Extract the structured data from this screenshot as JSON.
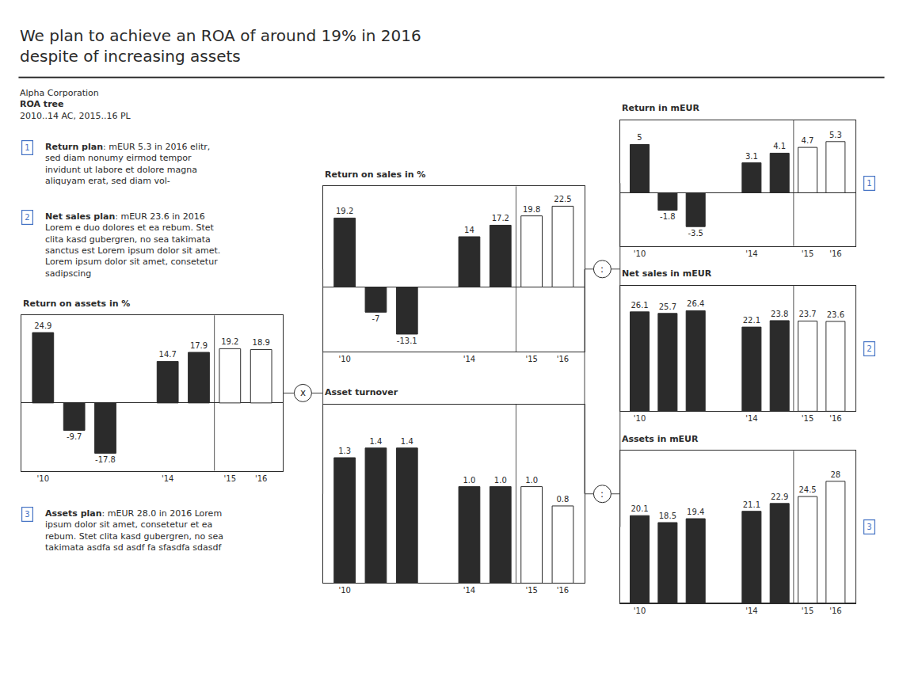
{
  "title": "We plan to achieve an ROA of around 19% in 2016\ndespite of increasing assets",
  "subtitle": [
    "Alpha Corporation",
    "ROA tree",
    "2010..14 AC, 2015..16 PL"
  ],
  "annotations": [
    {
      "label": "1",
      "text": "Return plan: mEUR 5.3 in 2016 elitr,\nsed diam nonumy eirmod tempor\ninvidunt ut labore et dolore magna\naliquyam erat, sed diam vol-"
    },
    {
      "label": "2",
      "text": "Net sales plan: mEUR 23.6 in 2016\nLorem e duo dolores et ea rebum. Stet\nclita kasd gubergren, no sea takimata\nsanctus est Lorem ipsum dolor sit amet.\nLorem ipsum dolor sit amet, consetetur\nsadipscing"
    },
    {
      "label": "3",
      "text": "Assets plan: mEUR 28.0 in 2016 Lorem\nipsum dolor sit amet, consetetur et ea\nrebum. Stet clita kasd gubergren, no sea\ntakimata asdfa sd asdf fa sfasdfa sdasdf"
    }
  ],
  "tree_operators": [
    "x",
    ":",
    ":"
  ],
  "chart_data": [
    {
      "type": "bar",
      "title": "Return on assets in %",
      "categories": [
        "'10",
        null,
        null,
        null,
        "'14",
        null,
        "'15",
        "'16"
      ],
      "values": [
        24.9,
        -9.7,
        -17.8,
        null,
        14.7,
        17.9,
        19.2,
        18.9
      ],
      "colors": [
        "#2b2b2b",
        "#2b2b2b",
        "#2b2b2b",
        null,
        "#2b2b2b",
        "#2b2b2b",
        "#ffffff",
        "#ffffff"
      ],
      "ylim": [
        -24,
        31
      ],
      "grid": false,
      "tick_labels": "x",
      "data_labels": true
    },
    {
      "type": "bar",
      "title": "Return on sales in %",
      "categories": [
        "'10",
        null,
        null,
        null,
        "'14",
        null,
        "'15",
        "'16"
      ],
      "values": [
        19.2,
        -7.0,
        -13.1,
        null,
        14.0,
        17.2,
        19.8,
        22.5
      ],
      "colors": [
        "#2b2b2b",
        "#2b2b2b",
        "#2b2b2b",
        null,
        "#2b2b2b",
        "#2b2b2b",
        "#ffffff",
        "#ffffff"
      ],
      "ylim": [
        -18,
        28
      ],
      "grid": false,
      "tick_labels": "x",
      "data_labels": true
    },
    {
      "type": "bar",
      "title": "Asset turnover",
      "categories": [
        "'10",
        null,
        null,
        null,
        "'14",
        null,
        "'15",
        "'16"
      ],
      "values": [
        1.3,
        1.4,
        1.4,
        null,
        1.0,
        1.0,
        1.0,
        0.8
      ],
      "value_labels": [
        "1.3",
        "1.4",
        "1.4",
        null,
        "1.0",
        "1.0",
        "1.0",
        "0.8"
      ],
      "colors": [
        "#2b2b2b",
        "#2b2b2b",
        "#2b2b2b",
        null,
        "#2b2b2b",
        "#2b2b2b",
        "#ffffff",
        "#ffffff"
      ],
      "ylim": [
        0,
        1.85
      ],
      "grid": false,
      "tick_labels": "x",
      "data_labels": true
    },
    {
      "type": "bar",
      "title": "Return in mEUR",
      "categories": [
        "'10",
        null,
        null,
        null,
        "'14",
        null,
        "'15",
        "'16"
      ],
      "values": [
        5.0,
        -1.8,
        -3.5,
        null,
        3.1,
        4.1,
        4.7,
        5.3
      ],
      "colors": [
        "#2b2b2b",
        "#2b2b2b",
        "#2b2b2b",
        null,
        "#2b2b2b",
        "#2b2b2b",
        "#ffffff",
        "#ffffff"
      ],
      "ylim": [
        -5.5,
        7.5
      ],
      "grid": false,
      "tick_labels": "x",
      "data_labels": true,
      "annotations": [
        "1"
      ]
    },
    {
      "type": "bar",
      "title": "Net sales in mEUR",
      "categories": [
        "'10",
        null,
        null,
        null,
        "'14",
        null,
        "'15",
        "'16"
      ],
      "values": [
        26.1,
        25.7,
        26.4,
        null,
        22.1,
        23.8,
        23.7,
        23.6
      ],
      "colors": [
        "#2b2b2b",
        "#2b2b2b",
        "#2b2b2b",
        null,
        "#2b2b2b",
        "#2b2b2b",
        "#ffffff",
        "#ffffff"
      ],
      "ylim": [
        0,
        33
      ],
      "grid": false,
      "tick_labels": "x",
      "data_labels": true,
      "annotations": [
        "2"
      ]
    },
    {
      "type": "bar",
      "title": "Assets in mEUR",
      "categories": [
        "'10",
        null,
        null,
        null,
        "'14",
        null,
        "'15",
        "'16"
      ],
      "values": [
        20.1,
        18.5,
        19.4,
        null,
        21.1,
        22.9,
        24.5,
        28.0
      ],
      "colors": [
        "#2b2b2b",
        "#2b2b2b",
        "#2b2b2b",
        null,
        "#2b2b2b",
        "#2b2b2b",
        "#ffffff",
        "#ffffff"
      ],
      "ylim": [
        0,
        35
      ],
      "grid": false,
      "tick_labels": "x",
      "data_labels": true,
      "annotations": [
        "3"
      ]
    }
  ]
}
